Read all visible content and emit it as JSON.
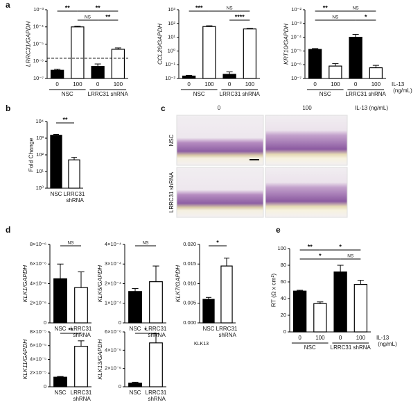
{
  "panel_labels": [
    "a",
    "b",
    "c",
    "d",
    "e"
  ],
  "histology": {
    "columns": [
      "0",
      "100"
    ],
    "unit": "IL-13 (ng/mL)",
    "rows": [
      "NSC",
      "LRRC31 shRNA"
    ]
  },
  "chart_data": [
    {
      "type": "bar",
      "y_label": "LRRC31/GAPDH",
      "italic_y_label": true,
      "categories": [
        "0",
        "100",
        "0",
        "100"
      ],
      "groups": [
        "NSC",
        "LRRC31 shRNA"
      ],
      "values": [
        3e-07,
        0.0001,
        5e-07,
        5e-06
      ],
      "errors": [
        5e-08,
        1e-05,
        2e-07,
        1e-06
      ],
      "colors": [
        "#000000",
        "#ffffff",
        "#000000",
        "#ffffff"
      ],
      "log_scale": true,
      "ylim": [
        1e-07,
        0.001
      ],
      "yticks": [
        {
          "value": 1e-07,
          "label": "10⁻⁷"
        },
        {
          "value": 1e-06,
          "label": "10⁻⁶"
        },
        {
          "value": 1e-05,
          "label": "10⁻⁵"
        },
        {
          "value": 0.0001,
          "label": "10⁻⁴"
        },
        {
          "value": 0.001,
          "label": "10⁻³"
        }
      ],
      "reference_line": 1.5e-06,
      "brackets": [
        {
          "label": "**",
          "from": 0,
          "to": 1
        },
        {
          "label": "**",
          "from": 1,
          "to": 3
        },
        {
          "label": "NS",
          "from": 1,
          "to": 2
        },
        {
          "label": "**",
          "from": 2,
          "to": 3
        }
      ]
    },
    {
      "type": "bar",
      "y_label": "CCL26/GAPDH",
      "italic_y_label": true,
      "categories": [
        "0",
        "100",
        "0",
        "100"
      ],
      "groups": [
        "NSC",
        "LRRC31 shRNA"
      ],
      "values": [
        0.015,
        60,
        0.02,
        40
      ],
      "errors": [
        0.002,
        8,
        0.01,
        4
      ],
      "colors": [
        "#000000",
        "#ffffff",
        "#000000",
        "#ffffff"
      ],
      "log_scale": true,
      "ylim": [
        0.01,
        1000
      ],
      "yticks": [
        {
          "value": 0.01,
          "label": "10⁻²"
        },
        {
          "value": 0.1,
          "label": "10⁻¹"
        },
        {
          "value": 1,
          "label": "10⁰"
        },
        {
          "value": 10,
          "label": "10¹"
        },
        {
          "value": 100,
          "label": "10²"
        },
        {
          "value": 1000,
          "label": "10³"
        }
      ],
      "brackets": [
        {
          "label": "***",
          "from": 0,
          "to": 1
        },
        {
          "label": "NS",
          "from": 1,
          "to": 3
        },
        {
          "label": "****",
          "from": 2,
          "to": 3
        }
      ]
    },
    {
      "type": "bar",
      "y_label": "KRT10/GAPDH",
      "italic_y_label": true,
      "categories": [
        "0",
        "100",
        "0",
        "100"
      ],
      "groups": [
        "NSC",
        "LRRC31 shRNA"
      ],
      "x_label": "IL-13 (ng/mL)",
      "values": [
        1.3e-05,
        8e-07,
        0.0001,
        6e-07
      ],
      "errors": [
        2e-06,
        4e-07,
        6e-05,
        3e-07
      ],
      "colors": [
        "#000000",
        "#ffffff",
        "#000000",
        "#ffffff"
      ],
      "log_scale": true,
      "ylim": [
        1e-07,
        0.01
      ],
      "yticks": [
        {
          "value": 1e-07,
          "label": "10⁻⁷"
        },
        {
          "value": 1e-06,
          "label": "10⁻⁶"
        },
        {
          "value": 1e-05,
          "label": "10⁻⁵"
        },
        {
          "value": 0.0001,
          "label": "10⁻⁴"
        },
        {
          "value": 0.001,
          "label": "10⁻³"
        },
        {
          "value": 0.01,
          "label": "10⁻²"
        }
      ],
      "brackets": [
        {
          "label": "**",
          "from": 0,
          "to": 1
        },
        {
          "label": "NS",
          "from": 1,
          "to": 3
        },
        {
          "label": "NS",
          "from": 0,
          "to": 2
        },
        {
          "label": "*",
          "from": 2,
          "to": 3
        }
      ]
    },
    {
      "type": "bar",
      "y_label": "Fold Change",
      "categories": [
        "NSC",
        "LRRC31 shRNA"
      ],
      "values": [
        1500,
        50
      ],
      "errors": [
        200,
        20
      ],
      "colors": [
        "#000000",
        "#ffffff"
      ],
      "log_scale": true,
      "ylim": [
        1,
        10000
      ],
      "yticks": [
        {
          "value": 1,
          "label": "10⁰"
        },
        {
          "value": 10,
          "label": "10¹"
        },
        {
          "value": 100,
          "label": "10²"
        },
        {
          "value": 1000,
          "label": "10³"
        },
        {
          "value": 10000,
          "label": "10⁴"
        }
      ],
      "brackets": [
        {
          "label": "**",
          "from": 0,
          "to": 1
        }
      ]
    },
    {
      "type": "bar",
      "y_label": "KLK1/GAPDH",
      "italic_y_label": true,
      "categories": [
        "NSC",
        "LRRC31 shRNA"
      ],
      "values": [
        4.5e-06,
        3.6e-06
      ],
      "errors": [
        1.5e-06,
        1.6e-06
      ],
      "colors": [
        "#000000",
        "#ffffff"
      ],
      "ylim": [
        0,
        8e-06
      ],
      "yticks": [
        0,
        {
          "value": 2e-06,
          "label": "2×10⁻⁶"
        },
        {
          "value": 4e-06,
          "label": "4×10⁻⁶"
        },
        {
          "value": 6e-06,
          "label": "6×10⁻⁶"
        },
        {
          "value": 8e-06,
          "label": "8×10⁻⁶"
        }
      ],
      "brackets": [
        {
          "label": "NS",
          "from": 0,
          "to": 1
        }
      ]
    },
    {
      "type": "bar",
      "y_label": "KLK5/GAPDH",
      "italic_y_label": true,
      "categories": [
        "NSC",
        "LRRC31 shRNA"
      ],
      "values": [
        0.00016,
        0.00021
      ],
      "errors": [
        1.5e-05,
        8e-05
      ],
      "colors": [
        "#000000",
        "#ffffff"
      ],
      "ylim": [
        0,
        0.0004
      ],
      "yticks": [
        0,
        {
          "value": 0.0001,
          "label": "1×10⁻⁴"
        },
        {
          "value": 0.0002,
          "label": "2×10⁻⁴"
        },
        {
          "value": 0.0003,
          "label": "3×10⁻⁴"
        },
        {
          "value": 0.0004,
          "label": "4×10⁻⁴"
        }
      ],
      "brackets": [
        {
          "label": "NS",
          "from": 0,
          "to": 1
        }
      ]
    },
    {
      "type": "bar",
      "y_label": "KLK7/GAPDH",
      "italic_y_label": true,
      "categories": [
        "NSC",
        "LRRC31 shRNA"
      ],
      "values": [
        0.006,
        0.0145
      ],
      "errors": [
        0.0005,
        0.002
      ],
      "colors": [
        "#000000",
        "#ffffff"
      ],
      "ylim": [
        0,
        0.02
      ],
      "yticks": [
        {
          "value": 0,
          "label": "0.000"
        },
        {
          "value": 0.005,
          "label": "0.005"
        },
        {
          "value": 0.01,
          "label": "0.010"
        },
        {
          "value": 0.015,
          "label": "0.015"
        },
        {
          "value": 0.02,
          "label": "0.020"
        }
      ],
      "brackets": [
        {
          "label": "*",
          "from": 0,
          "to": 1
        }
      ],
      "note": "KLK13"
    },
    {
      "type": "bar",
      "y_label": "KLK11/GAPDH",
      "italic_y_label": true,
      "categories": [
        "NSC",
        "LRRC31 shRNA"
      ],
      "values": [
        1.4e-05,
        5.9e-05
      ],
      "errors": [
        1e-06,
        8e-06
      ],
      "colors": [
        "#000000",
        "#ffffff"
      ],
      "ylim": [
        0,
        8e-05
      ],
      "yticks": [
        0,
        {
          "value": 2e-05,
          "label": "2×10⁻⁵"
        },
        {
          "value": 4e-05,
          "label": "4×10⁻⁵"
        },
        {
          "value": 6e-05,
          "label": "6×10⁻⁵"
        },
        {
          "value": 8e-05,
          "label": "8×10⁻⁵"
        }
      ],
      "brackets": [
        {
          "label": "**",
          "from": 0,
          "to": 1
        }
      ]
    },
    {
      "type": "bar",
      "y_label": "KLK13/GAPDH",
      "italic_y_label": true,
      "categories": [
        "NSC",
        "LRRC31 shRNA"
      ],
      "values": [
        4e-07,
        4.8e-06
      ],
      "errors": [
        1e-07,
        1e-06
      ],
      "colors": [
        "#000000",
        "#ffffff"
      ],
      "ylim": [
        0,
        6e-06
      ],
      "yticks": [
        0,
        {
          "value": 2e-06,
          "label": "2×10⁻⁶"
        },
        {
          "value": 4e-06,
          "label": "4×10⁻⁶"
        },
        {
          "value": 6e-06,
          "label": "6×10⁻⁶"
        }
      ],
      "brackets": [
        {
          "label": "*",
          "from": 0,
          "to": 1
        }
      ]
    },
    {
      "type": "bar",
      "y_label": "RT (Ω x cm²)",
      "categories": [
        "0",
        "100",
        "0",
        "100"
      ],
      "groups": [
        "NSC",
        "LRRC31 shRNA"
      ],
      "x_label": "IL-13 (ng/mL)",
      "values": [
        49,
        34,
        72,
        57
      ],
      "errors": [
        1,
        2,
        8,
        5
      ],
      "colors": [
        "#000000",
        "#ffffff",
        "#000000",
        "#ffffff"
      ],
      "ylim": [
        0,
        100
      ],
      "yticks": [
        0,
        20,
        40,
        60,
        80,
        100
      ],
      "brackets": [
        {
          "label": "**",
          "from": 0,
          "to": 1
        },
        {
          "label": "*",
          "from": 1,
          "to": 3
        },
        {
          "label": "*",
          "from": 0,
          "to": 2
        },
        {
          "label": "NS",
          "from": 2,
          "to": 3
        }
      ]
    }
  ]
}
